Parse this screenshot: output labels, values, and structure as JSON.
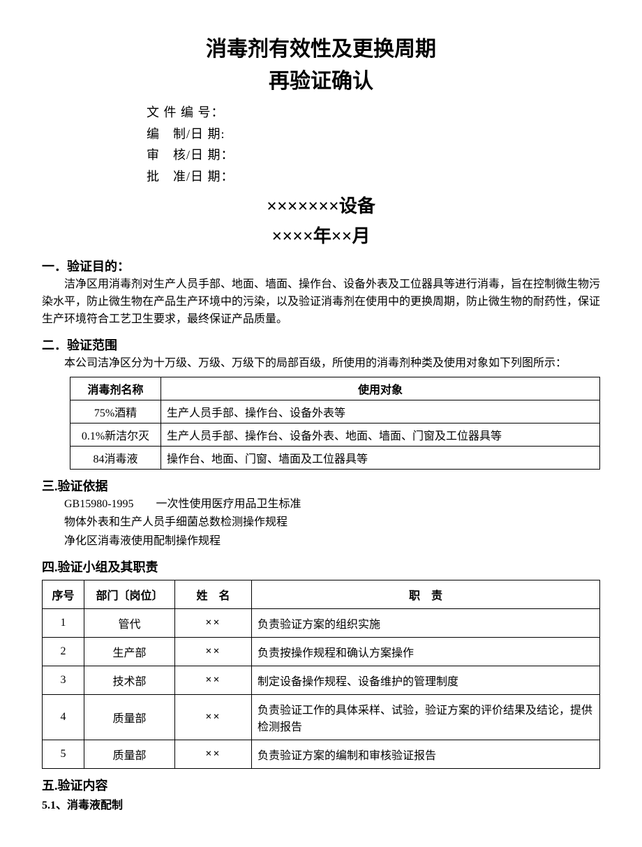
{
  "title": {
    "line1": "消毒剂有效性及更换周期",
    "line2": "再验证确认"
  },
  "meta": {
    "docno_label": "文 件 编 号：",
    "author_label": "编　制/日 期:",
    "review_label": "审　核/日 期：",
    "approve_label": "批　准/日 期："
  },
  "subheader": {
    "line1": "×××××××设备",
    "line2": "××××年××月"
  },
  "section1": {
    "heading": "一．验证目的：",
    "body": "洁净区用消毒剂对生产人员手部、地面、墙面、操作台、设备外表及工位器具等进行消毒，旨在控制微生物污染水平，防止微生物在产品生产环境中的污染，以及验证消毒剂在使用中的更换周期，防止微生物的耐药性，保证生产环境符合工艺卫生要求，最终保证产品质量。"
  },
  "section2": {
    "heading": "二．验证范围",
    "body": "本公司洁净区分为十万级、万级、万级下的局部百级，所使用的消毒剂种类及使用对象如下列图所示：",
    "table": {
      "col_name": "消毒剂名称",
      "col_target": "使用对象",
      "rows": [
        {
          "name": "75%酒精",
          "target": "生产人员手部、操作台、设备外表等"
        },
        {
          "name": "0.1%新洁尔灭",
          "target": "生产人员手部、操作台、设备外表、地面、墙面、门窗及工位器具等"
        },
        {
          "name": "84消毒液",
          "target": "操作台、地面、门窗、墙面及工位器具等"
        }
      ]
    }
  },
  "section3": {
    "heading": "三.验证依据",
    "lines": [
      "GB15980-1995　　一次性使用医疗用品卫生标准",
      "物体外表和生产人员手细菌总数检测操作规程",
      "净化区消毒液使用配制操作规程"
    ]
  },
  "section4": {
    "heading": "四.验证小组及其职责",
    "table": {
      "col_seq": "序号",
      "col_dept": "部门〔岗位〕",
      "col_name": "姓　名",
      "col_duty": "职　责",
      "rows": [
        {
          "seq": "1",
          "dept": "管代",
          "name": "××",
          "duty": "负责验证方案的组织实施"
        },
        {
          "seq": "2",
          "dept": "生产部",
          "name": "××",
          "duty": "负责按操作规程和确认方案操作"
        },
        {
          "seq": "3",
          "dept": "技术部",
          "name": "××",
          "duty": "制定设备操作规程、设备维护的管理制度"
        },
        {
          "seq": "4",
          "dept": "质量部",
          "name": "××",
          "duty": "负责验证工作的具体采样、试验，验证方案的评价结果及结论，提供检测报告"
        },
        {
          "seq": "5",
          "dept": "质量部",
          "name": "××",
          "duty": "负责验证方案的编制和审核验证报告"
        }
      ]
    }
  },
  "section5": {
    "heading": "五.验证内容",
    "sub1": "5.1、消毒液配制"
  }
}
